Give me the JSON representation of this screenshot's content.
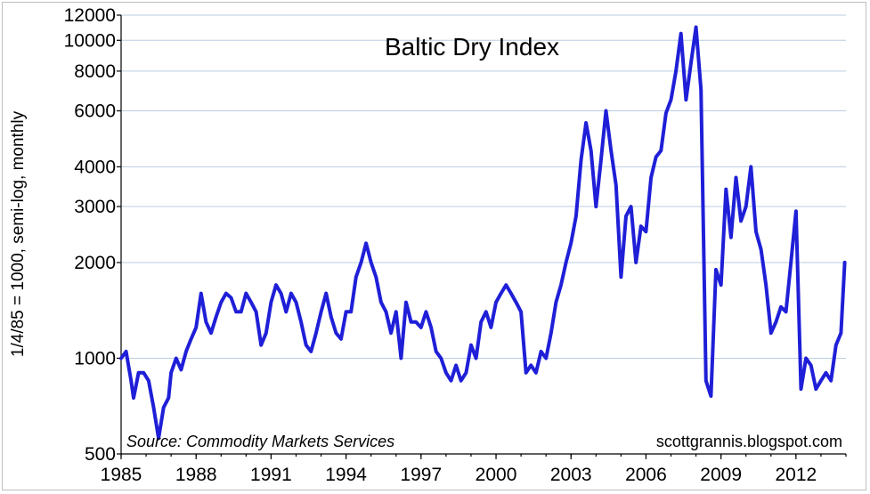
{
  "chart_data": {
    "type": "line",
    "title": "Baltic Dry Index",
    "ylabel": "1/4/85 = 1000, semi-log, monthly",
    "xlabel": "",
    "source": "Source: Commodity Markets Services",
    "credit": "scottgrannis.blogspot.com",
    "yscale": "log",
    "ylim": [
      500,
      12000
    ],
    "xlim": [
      1985,
      2014
    ],
    "y_ticks": [
      500,
      1000,
      2000,
      3000,
      4000,
      6000,
      8000,
      10000,
      12000
    ],
    "x_ticks": [
      1985,
      1988,
      1991,
      1994,
      1997,
      2000,
      2003,
      2006,
      2009,
      2012
    ],
    "grid": true,
    "colors": {
      "series": "#1f1fd8",
      "grid": "#b9cde0"
    },
    "series": [
      {
        "name": "",
        "x": [
          1985.0,
          1985.2,
          1985.4,
          1985.5,
          1985.7,
          1985.9,
          1986.1,
          1986.3,
          1986.5,
          1986.7,
          1986.9,
          1987.0,
          1987.2,
          1987.4,
          1987.6,
          1987.8,
          1988.0,
          1988.2,
          1988.4,
          1988.6,
          1988.8,
          1989.0,
          1989.2,
          1989.4,
          1989.6,
          1989.8,
          1990.0,
          1990.2,
          1990.4,
          1990.6,
          1990.8,
          1991.0,
          1991.2,
          1991.4,
          1991.6,
          1991.8,
          1992.0,
          1992.2,
          1992.4,
          1992.6,
          1992.8,
          1993.0,
          1993.2,
          1993.4,
          1993.6,
          1993.8,
          1994.0,
          1994.2,
          1994.4,
          1994.6,
          1994.8,
          1995.0,
          1995.2,
          1995.4,
          1995.6,
          1995.8,
          1996.0,
          1996.2,
          1996.4,
          1996.6,
          1996.8,
          1997.0,
          1997.2,
          1997.4,
          1997.6,
          1997.8,
          1998.0,
          1998.2,
          1998.4,
          1998.6,
          1998.8,
          1999.0,
          1999.2,
          1999.4,
          1999.6,
          1999.8,
          2000.0,
          2000.2,
          2000.4,
          2000.6,
          2000.8,
          2001.0,
          2001.2,
          2001.4,
          2001.6,
          2001.8,
          2002.0,
          2002.2,
          2002.4,
          2002.6,
          2002.8,
          2003.0,
          2003.2,
          2003.4,
          2003.6,
          2003.8,
          2004.0,
          2004.2,
          2004.4,
          2004.6,
          2004.8,
          2005.0,
          2005.2,
          2005.4,
          2005.6,
          2005.8,
          2006.0,
          2006.2,
          2006.4,
          2006.6,
          2006.8,
          2007.0,
          2007.2,
          2007.4,
          2007.6,
          2007.8,
          2008.0,
          2008.2,
          2008.4,
          2008.6,
          2008.8,
          2009.0,
          2009.2,
          2009.4,
          2009.6,
          2009.8,
          2010.0,
          2010.2,
          2010.4,
          2010.6,
          2010.8,
          2011.0,
          2011.2,
          2011.4,
          2011.6,
          2011.8,
          2012.0,
          2012.2,
          2012.4,
          2012.6,
          2012.8,
          2013.0,
          2013.2,
          2013.4,
          2013.6,
          2013.8,
          2013.95
        ],
        "values": [
          1000,
          1050,
          850,
          750,
          900,
          900,
          850,
          700,
          560,
          700,
          750,
          900,
          1000,
          920,
          1050,
          1150,
          1250,
          1600,
          1300,
          1200,
          1350,
          1500,
          1600,
          1550,
          1400,
          1400,
          1600,
          1500,
          1400,
          1100,
          1200,
          1500,
          1700,
          1600,
          1400,
          1600,
          1500,
          1300,
          1100,
          1050,
          1200,
          1400,
          1600,
          1350,
          1200,
          1150,
          1400,
          1400,
          1800,
          2000,
          2300,
          2000,
          1800,
          1500,
          1400,
          1200,
          1400,
          1000,
          1500,
          1300,
          1300,
          1250,
          1400,
          1250,
          1050,
          1000,
          900,
          850,
          950,
          850,
          900,
          1100,
          1000,
          1300,
          1400,
          1250,
          1500,
          1600,
          1700,
          1600,
          1500,
          1400,
          900,
          950,
          900,
          1050,
          1000,
          1200,
          1500,
          1700,
          2000,
          2300,
          2800,
          4200,
          5500,
          4500,
          3000,
          4200,
          6000,
          4500,
          3500,
          1800,
          2800,
          3000,
          2000,
          2600,
          2500,
          3700,
          4300,
          4500,
          5900,
          6500,
          8000,
          10500,
          6500,
          8500,
          11000,
          7000,
          850,
          760,
          1900,
          1700,
          3400,
          2400,
          3700,
          2700,
          3000,
          4000,
          2500,
          2200,
          1700,
          1200,
          1300,
          1450,
          1400,
          2000,
          2900,
          800,
          1000,
          950,
          800,
          850,
          900,
          850,
          1100,
          1200,
          2000
        ]
      }
    ]
  }
}
